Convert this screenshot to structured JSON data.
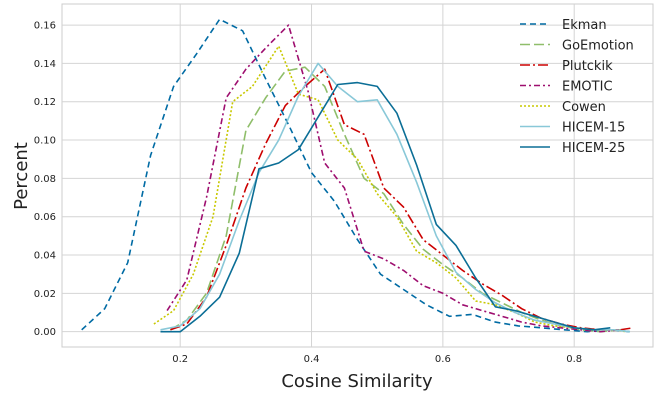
{
  "chart_data": {
    "type": "line",
    "title": "",
    "xlabel": "Cosine Similarity",
    "ylabel": "Percent",
    "xlim": [
      0.02,
      0.92
    ],
    "ylim": [
      -0.008,
      0.171
    ],
    "xticks": [
      0.2,
      0.4,
      0.6,
      0.8
    ],
    "xtick_labels": [
      "0.2",
      "0.4",
      "0.6",
      "0.8"
    ],
    "yticks": [
      0.0,
      0.02,
      0.04,
      0.06,
      0.08,
      0.1,
      0.12,
      0.14,
      0.16
    ],
    "ytick_labels": [
      "0.00",
      "0.02",
      "0.04",
      "0.06",
      "0.08",
      "0.10",
      "0.12",
      "0.14",
      "0.16"
    ],
    "grid": true,
    "legend": "top-right",
    "series": [
      {
        "name": "Ekman",
        "color": "#006ba4",
        "dash": "6,4",
        "x": [
          0.05,
          0.085,
          0.12,
          0.155,
          0.19,
          0.225,
          0.26,
          0.295,
          0.33,
          0.365,
          0.4,
          0.435,
          0.47,
          0.505,
          0.54,
          0.575,
          0.61,
          0.645,
          0.68,
          0.715,
          0.75,
          0.785,
          0.82,
          0.855,
          0.885
        ],
        "y": [
          0.001,
          0.012,
          0.036,
          0.092,
          0.128,
          0.145,
          0.163,
          0.157,
          0.132,
          0.108,
          0.083,
          0.068,
          0.048,
          0.03,
          0.022,
          0.014,
          0.008,
          0.009,
          0.005,
          0.003,
          0.002,
          0.001,
          0.0,
          0.001,
          0.0
        ]
      },
      {
        "name": "GoEmotion",
        "color": "#8fbe6a",
        "dash": "10,4",
        "x": [
          0.185,
          0.21,
          0.24,
          0.27,
          0.3,
          0.33,
          0.36,
          0.39,
          0.42,
          0.45,
          0.48,
          0.51,
          0.54,
          0.57,
          0.6,
          0.63,
          0.66,
          0.69,
          0.72,
          0.75,
          0.78,
          0.81,
          0.84,
          0.87
        ],
        "y": [
          0.001,
          0.006,
          0.02,
          0.05,
          0.105,
          0.122,
          0.136,
          0.138,
          0.128,
          0.103,
          0.08,
          0.072,
          0.056,
          0.043,
          0.035,
          0.028,
          0.02,
          0.015,
          0.01,
          0.006,
          0.003,
          0.001,
          0.0,
          0.001
        ]
      },
      {
        "name": "Plutckik",
        "color": "#cc0000",
        "dash": "10,3,2,3",
        "x": [
          0.185,
          0.21,
          0.24,
          0.27,
          0.3,
          0.33,
          0.36,
          0.39,
          0.42,
          0.45,
          0.48,
          0.51,
          0.54,
          0.57,
          0.6,
          0.63,
          0.66,
          0.69,
          0.72,
          0.75,
          0.78,
          0.81,
          0.84,
          0.87,
          0.89
        ],
        "y": [
          0.001,
          0.004,
          0.018,
          0.045,
          0.075,
          0.098,
          0.118,
          0.128,
          0.137,
          0.108,
          0.103,
          0.075,
          0.065,
          0.048,
          0.04,
          0.032,
          0.025,
          0.019,
          0.012,
          0.007,
          0.004,
          0.002,
          0.001,
          0.001,
          0.002
        ]
      },
      {
        "name": "EMOTIC",
        "color": "#9e0e6f",
        "dash": "6,3,2,3",
        "x": [
          0.18,
          0.21,
          0.24,
          0.27,
          0.3,
          0.33,
          0.365,
          0.395,
          0.42,
          0.45,
          0.48,
          0.51,
          0.54,
          0.57,
          0.6,
          0.63,
          0.66,
          0.69,
          0.72,
          0.75,
          0.78,
          0.81,
          0.84,
          0.87
        ],
        "y": [
          0.011,
          0.027,
          0.07,
          0.122,
          0.137,
          0.148,
          0.16,
          0.125,
          0.088,
          0.075,
          0.042,
          0.038,
          0.032,
          0.024,
          0.02,
          0.014,
          0.011,
          0.008,
          0.005,
          0.003,
          0.002,
          0.001,
          0.0,
          0.001
        ]
      },
      {
        "name": "Cowen",
        "color": "#c8c800",
        "dash": "2,2",
        "x": [
          0.16,
          0.19,
          0.22,
          0.25,
          0.28,
          0.31,
          0.35,
          0.38,
          0.41,
          0.44,
          0.47,
          0.5,
          0.53,
          0.56,
          0.59,
          0.62,
          0.65,
          0.68,
          0.71,
          0.74,
          0.77,
          0.8,
          0.83,
          0.86,
          0.88
        ],
        "y": [
          0.004,
          0.011,
          0.03,
          0.06,
          0.12,
          0.128,
          0.149,
          0.124,
          0.121,
          0.1,
          0.09,
          0.072,
          0.06,
          0.042,
          0.036,
          0.028,
          0.016,
          0.014,
          0.01,
          0.005,
          0.003,
          0.002,
          0.001,
          0.001,
          0.0
        ]
      },
      {
        "name": "HICEM-15",
        "color": "#89c8d8",
        "dash": "",
        "x": [
          0.17,
          0.2,
          0.23,
          0.26,
          0.29,
          0.32,
          0.35,
          0.38,
          0.41,
          0.44,
          0.47,
          0.5,
          0.53,
          0.56,
          0.59,
          0.62,
          0.65,
          0.68,
          0.71,
          0.74,
          0.77,
          0.8,
          0.83,
          0.86,
          0.885
        ],
        "y": [
          0.001,
          0.003,
          0.012,
          0.03,
          0.058,
          0.083,
          0.1,
          0.123,
          0.14,
          0.128,
          0.12,
          0.121,
          0.103,
          0.078,
          0.05,
          0.031,
          0.022,
          0.015,
          0.01,
          0.006,
          0.004,
          0.002,
          0.001,
          0.001,
          0.0
        ]
      },
      {
        "name": "HICEM-25",
        "color": "#0b6e96",
        "dash": "",
        "x": [
          0.17,
          0.2,
          0.23,
          0.26,
          0.29,
          0.32,
          0.35,
          0.38,
          0.41,
          0.44,
          0.47,
          0.5,
          0.53,
          0.56,
          0.59,
          0.62,
          0.65,
          0.68,
          0.71,
          0.74,
          0.77,
          0.8,
          0.83,
          0.855
        ],
        "y": [
          0.0,
          0.0,
          0.008,
          0.018,
          0.041,
          0.085,
          0.088,
          0.095,
          0.112,
          0.129,
          0.13,
          0.128,
          0.114,
          0.087,
          0.056,
          0.045,
          0.028,
          0.013,
          0.011,
          0.008,
          0.005,
          0.002,
          0.001,
          0.002
        ]
      }
    ]
  }
}
